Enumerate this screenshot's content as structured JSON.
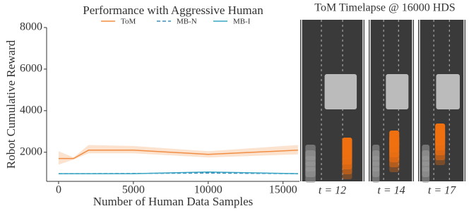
{
  "chart_data": {
    "type": "line",
    "title": "Performance with Aggressive Human",
    "x_label": "Number of Human Data Samples",
    "y_label": "Robot Cumulative Reward",
    "x": [
      0,
      1000,
      2000,
      5000,
      10000,
      16000
    ],
    "xlim": [
      -800,
      16100
    ],
    "xticks": [
      0,
      5000,
      10000,
      15000
    ],
    "ylim": [
      600,
      8000
    ],
    "yticks": [
      2000,
      4000,
      6000,
      8000
    ],
    "series": [
      {
        "name": "ToM",
        "color": "#f28e44",
        "dash": false,
        "values": [
          1700,
          1700,
          2100,
          2100,
          1900,
          2100
        ],
        "band_lower": [
          1400,
          1650,
          1950,
          1950,
          1750,
          1900
        ],
        "band_upper": [
          2050,
          1750,
          2350,
          2300,
          2050,
          2350
        ]
      },
      {
        "name": "MB-N",
        "color": "#3a8fbf",
        "dash": true,
        "values": [
          970,
          970,
          970,
          980,
          1000,
          970
        ]
      },
      {
        "name": "MB-I",
        "color": "#3aa6c4",
        "dash": false,
        "values": [
          970,
          970,
          970,
          970,
          1050,
          970
        ]
      }
    ]
  },
  "timelapse": {
    "title": "ToM Timelapse @ 16000 HDS",
    "frames": [
      {
        "label": "t = 12"
      },
      {
        "label": "t = 14"
      },
      {
        "label": "t = 17"
      }
    ]
  }
}
